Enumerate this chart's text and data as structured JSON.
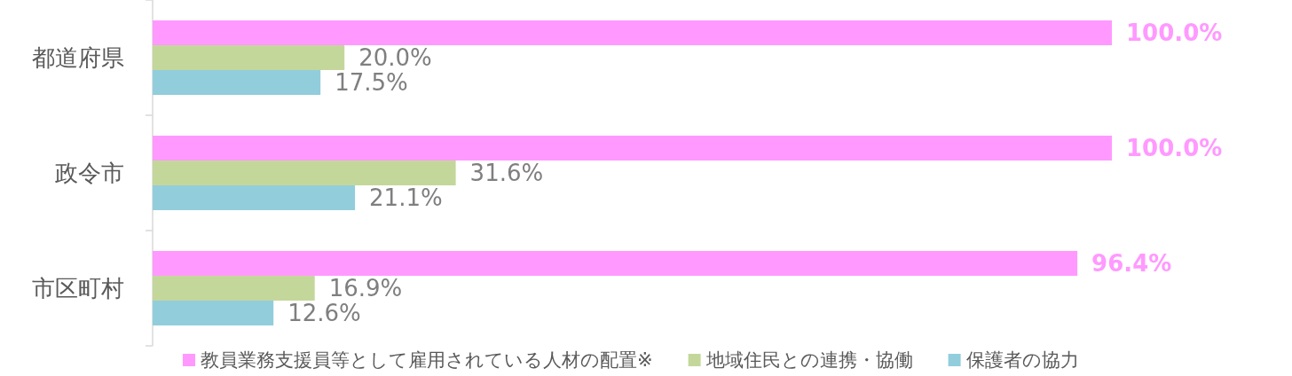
{
  "chart_data": {
    "type": "bar",
    "orientation": "horizontal",
    "categories": [
      "都道府県",
      "政令市",
      "市区町村"
    ],
    "series": [
      {
        "name": "教員業務支援員等として雇用されている人材の配置※",
        "color": "#ff99ff",
        "values": [
          100.0,
          100.0,
          96.4
        ],
        "value_labels": [
          "100.0%",
          "100.0%",
          "96.4%"
        ]
      },
      {
        "name": "地域住民との連携・協働",
        "color": "#c4d79b",
        "values": [
          20.0,
          31.6,
          16.9
        ],
        "value_labels": [
          "20.0%",
          "31.6%",
          "16.9%"
        ]
      },
      {
        "name": "保護者の協力",
        "color": "#92cddc",
        "values": [
          17.5,
          21.1,
          12.6
        ],
        "value_labels": [
          "17.5%",
          "21.1%",
          "12.6%"
        ]
      }
    ],
    "legend": "bottom",
    "tick_labels": "y"
  }
}
